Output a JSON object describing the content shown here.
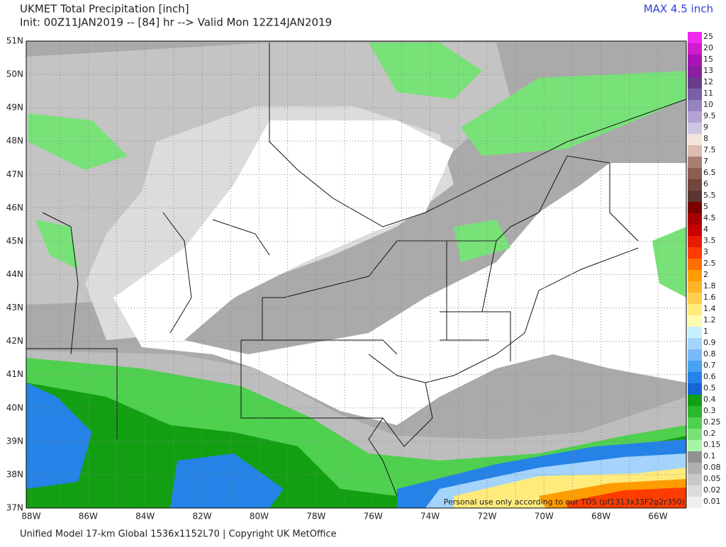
{
  "header": {
    "title": "UKMET Total Precipitation [inch]",
    "subtitle": "Init: 00Z11JAN2019 -- [84] hr --> Valid Mon 12Z14JAN2019",
    "max_label": "MAX 4.5 inch"
  },
  "map": {
    "lat_labels": [
      "51N",
      "50N",
      "49N",
      "48N",
      "47N",
      "46N",
      "45N",
      "44N",
      "43N",
      "42N",
      "41N",
      "40N",
      "39N",
      "38N",
      "37N"
    ],
    "lon_labels": [
      "88W",
      "86W",
      "84W",
      "82W",
      "80W",
      "78W",
      "76W",
      "74W",
      "72W",
      "70W",
      "68W",
      "66W"
    ],
    "watermark": "Personal use only according to our TOS (pf1313x33F2g2r350)"
  },
  "colorbar": {
    "levels": [
      0.01,
      0.02,
      0.05,
      0.08,
      0.1,
      0.15,
      0.2,
      0.25,
      0.3,
      0.4,
      0.5,
      0.6,
      0.7,
      0.8,
      0.9,
      1,
      1.2,
      1.4,
      1.6,
      1.8,
      2,
      2.5,
      3,
      3.5,
      4,
      4.5,
      5,
      5.5,
      6,
      6.5,
      7,
      7.5,
      8,
      9,
      9.5,
      10,
      11,
      12,
      13,
      15,
      20,
      25
    ],
    "colors": [
      "#efefef",
      "#dcdcdc",
      "#c8c8c8",
      "#b0b0b0",
      "#919191",
      "#a6f5a6",
      "#78e278",
      "#4fd04f",
      "#2cb72c",
      "#12a012",
      "#1665d6",
      "#2582e6",
      "#48a2f2",
      "#7ab9fa",
      "#a4d4fc",
      "#c8f0fc",
      "#fffcb0",
      "#ffeb7c",
      "#ffcf50",
      "#ffb428",
      "#ff9c00",
      "#ff6e00",
      "#ff3c00",
      "#e61c00",
      "#c80000",
      "#a80000",
      "#7a0000",
      "#5a3630",
      "#72463c",
      "#8a5e54",
      "#a87e72",
      "#dcbcb0",
      "#f4e4dc",
      "#cfc6e6",
      "#b4a2d2",
      "#9682be",
      "#7a5ea6",
      "#6a3c8c",
      "#8a1ea0",
      "#a814b4",
      "#cc1ccc",
      "#ee2aee"
    ]
  },
  "footer": "Unified Model 17-km Global 1536x1152L70 | Copyright UK MetOffice"
}
